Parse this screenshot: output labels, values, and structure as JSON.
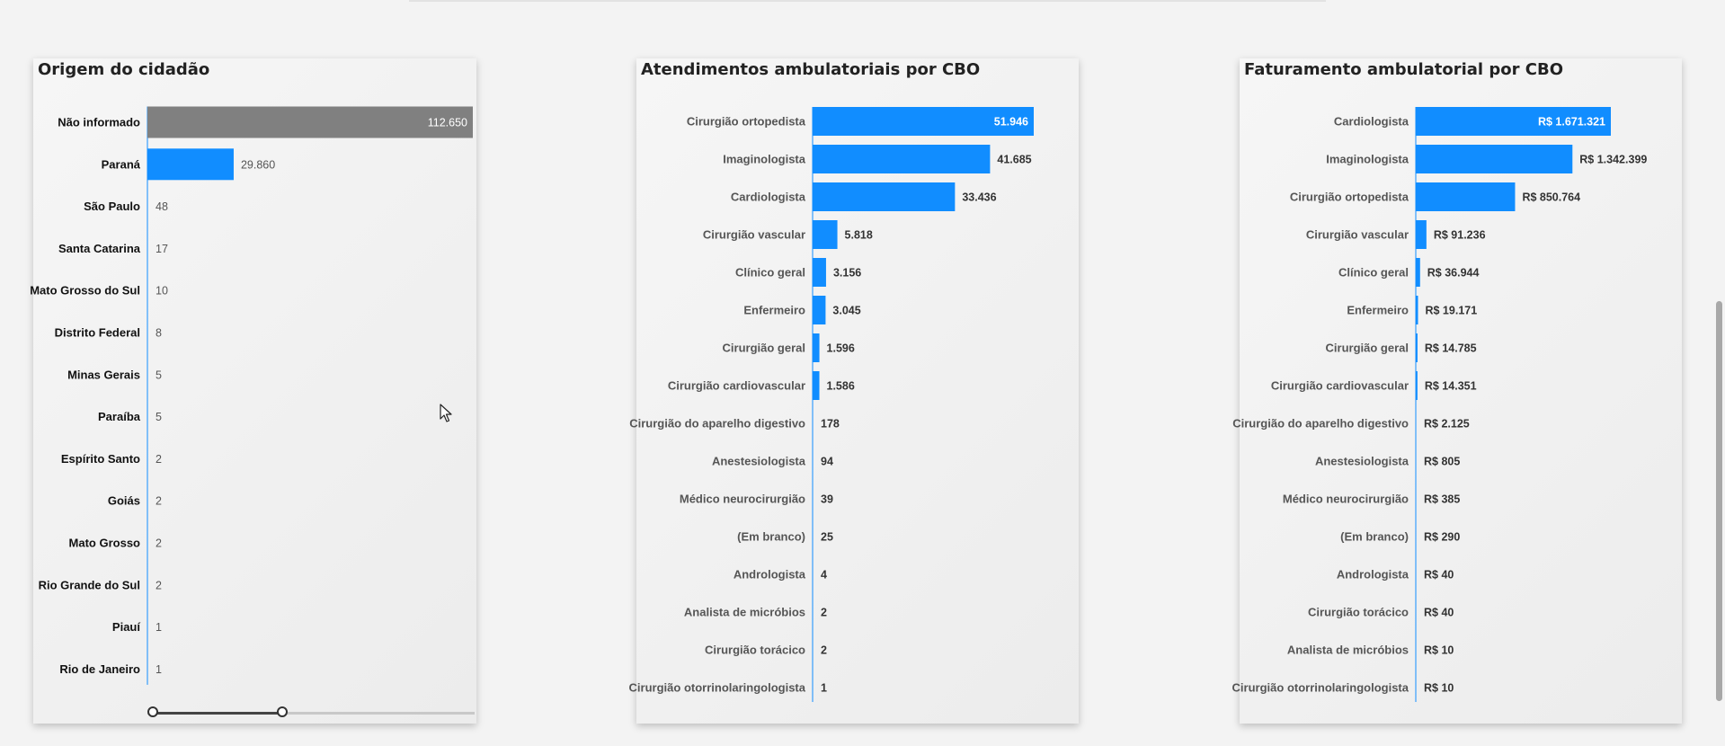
{
  "colors": {
    "accent": "#118dff",
    "gray_bar": "#808080"
  },
  "chart_data": [
    {
      "type": "bar",
      "orientation": "horizontal",
      "title": "Origem do cidadão",
      "categories": [
        "Não informado",
        "Paraná",
        "São Paulo",
        "Santa Catarina",
        "Mato Grosso do Sul",
        "Distrito Federal",
        "Minas Gerais",
        "Paraíba",
        "Espírito Santo",
        "Goiás",
        "Mato Grosso",
        "Rio Grande do Sul",
        "Piauí",
        "Rio de Janeiro"
      ],
      "values": [
        112650,
        29860,
        48,
        17,
        10,
        8,
        5,
        5,
        2,
        2,
        2,
        2,
        1,
        1
      ],
      "labels": [
        "112.650",
        "29.860",
        "48",
        "17",
        "10",
        "8",
        "5",
        "5",
        "2",
        "2",
        "2",
        "2",
        "1",
        "1"
      ],
      "bar_colors": [
        "#808080",
        "#118dff",
        "#118dff",
        "#118dff",
        "#118dff",
        "#118dff",
        "#118dff",
        "#118dff",
        "#118dff",
        "#118dff",
        "#118dff",
        "#118dff",
        "#118dff",
        "#118dff"
      ],
      "xmax": 112650,
      "slider": {
        "range_start": 0,
        "range_end": 0.41
      }
    },
    {
      "type": "bar",
      "orientation": "horizontal",
      "title": "Atendimentos ambulatoriais por CBO",
      "categories": [
        "Cirurgião ortopedista",
        "Imaginologista",
        "Cardiologista",
        "Cirurgião vascular",
        "Clínico geral",
        "Enfermeiro",
        "Cirurgião geral",
        "Cirurgião cardiovascular",
        "Cirurgião do aparelho digestivo",
        "Anestesiologista",
        "Médico neurocirurgião",
        "(Em branco)",
        "Andrologista",
        "Analista de micróbios",
        "Cirurgião torácico",
        "Cirurgião otorrinolaringologista"
      ],
      "values": [
        51946,
        41685,
        33436,
        5818,
        3156,
        3045,
        1596,
        1586,
        178,
        94,
        39,
        25,
        4,
        2,
        2,
        1
      ],
      "labels": [
        "51.946",
        "41.685",
        "33.436",
        "5.818",
        "3.156",
        "3.045",
        "1.596",
        "1.586",
        "178",
        "94",
        "39",
        "25",
        "4",
        "2",
        "2",
        "1"
      ],
      "xmax": 51946
    },
    {
      "type": "bar",
      "orientation": "horizontal",
      "title": "Faturamento ambulatorial por CBO",
      "categories": [
        "Cardiologista",
        "Imaginologista",
        "Cirurgião ortopedista",
        "Cirurgião vascular",
        "Clínico geral",
        "Enfermeiro",
        "Cirurgião geral",
        "Cirurgião cardiovascular",
        "Cirurgião do aparelho digestivo",
        "Anestesiologista",
        "Médico neurocirurgião",
        "(Em branco)",
        "Andrologista",
        "Cirurgião torácico",
        "Analista de micróbios",
        "Cirurgião otorrinolaringologista"
      ],
      "values": [
        1671321,
        1342399,
        850764,
        91236,
        36944,
        19171,
        14785,
        14351,
        2125,
        805,
        385,
        290,
        40,
        40,
        10,
        10
      ],
      "labels": [
        "R$ 1.671.321",
        "R$ 1.342.399",
        "R$ 850.764",
        "R$ 91.236",
        "R$ 36.944",
        "R$ 19.171",
        "R$ 14.785",
        "R$ 14.351",
        "R$ 2.125",
        "R$ 805",
        "R$ 385",
        "R$ 290",
        "R$ 40",
        "R$ 40",
        "R$ 10",
        "R$ 10"
      ],
      "xmax": 1671321
    }
  ]
}
